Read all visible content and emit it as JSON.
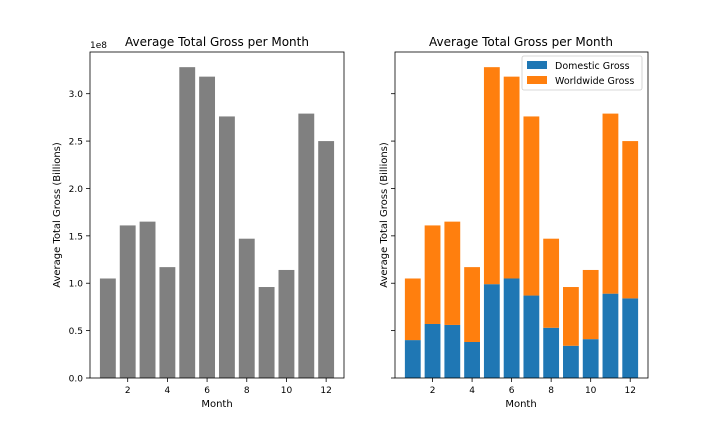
{
  "chart_data": [
    {
      "type": "bar",
      "title": "Average Total Gross per Month",
      "xlabel": "Month",
      "ylabel": "Average Total Gross (Billions)",
      "y_offset_label": "1e8",
      "x": [
        1,
        2,
        3,
        4,
        5,
        6,
        7,
        8,
        9,
        10,
        11,
        12
      ],
      "values": [
        105000000,
        161000000,
        165000000,
        117000000,
        328000000,
        318000000,
        276000000,
        147000000,
        96000000,
        114000000,
        279000000,
        250000000
      ],
      "xticks": [
        2,
        4,
        6,
        8,
        10,
        12
      ],
      "yticks": [
        0,
        50000000,
        100000000,
        150000000,
        200000000,
        250000000,
        300000000
      ],
      "ytick_labels": [
        "0.0",
        "0.5",
        "1.0",
        "1.5",
        "2.0",
        "2.5",
        "3.0"
      ],
      "xlim": [
        0.1,
        12.9
      ],
      "ylim": [
        0,
        344000000
      ],
      "color": "#808080",
      "grid": false,
      "legend": null
    },
    {
      "type": "bar",
      "stacked": true,
      "title": "Average Total Gross per Month",
      "xlabel": "Month",
      "ylabel": "Average Total Gross (Billions)",
      "x": [
        1,
        2,
        3,
        4,
        5,
        6,
        7,
        8,
        9,
        10,
        11,
        12
      ],
      "series": [
        {
          "name": "Domestic Gross",
          "color": "#1f77b4",
          "values": [
            40000000,
            57000000,
            56000000,
            38000000,
            99000000,
            105000000,
            87000000,
            53000000,
            34000000,
            41000000,
            89000000,
            84000000
          ]
        },
        {
          "name": "Worldwide Gross",
          "color": "#ff7f0e",
          "values": [
            65000000,
            104000000,
            109000000,
            79000000,
            229000000,
            213000000,
            189000000,
            94000000,
            62000000,
            73000000,
            190000000,
            166000000
          ]
        }
      ],
      "xticks": [
        2,
        4,
        6,
        8,
        10,
        12
      ],
      "yticks": [
        0,
        50000000,
        100000000,
        150000000,
        200000000,
        250000000,
        300000000
      ],
      "xlim": [
        0.1,
        12.9
      ],
      "ylim": [
        0,
        344000000
      ],
      "grid": false,
      "legend": "top-right"
    }
  ]
}
